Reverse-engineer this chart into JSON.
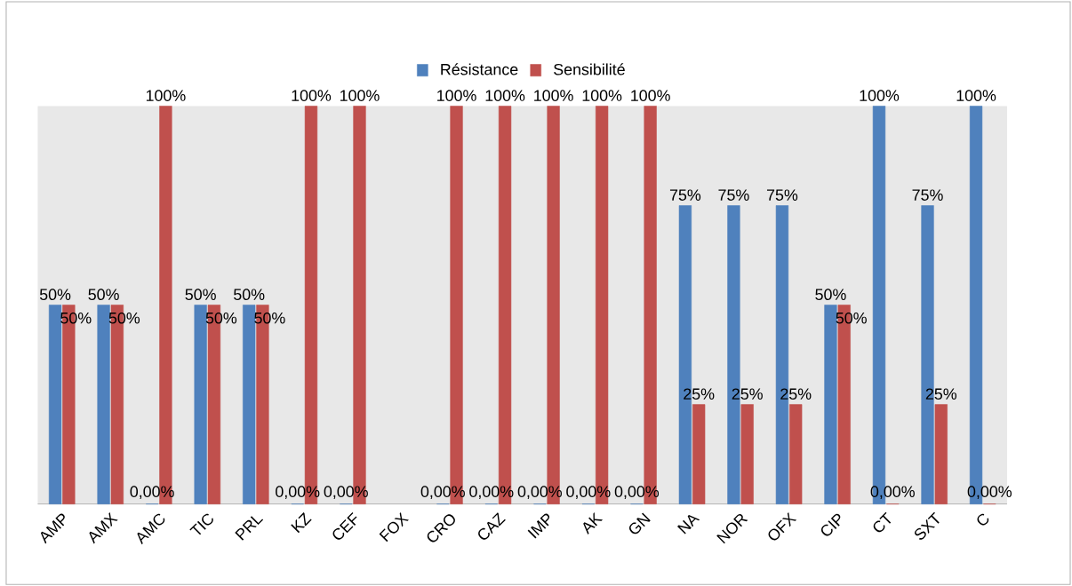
{
  "chart_data": {
    "type": "bar",
    "categories": [
      "AMP",
      "AMX",
      "AMC",
      "TIC",
      "PRL",
      "KZ",
      "CEF",
      "FOX",
      "CRO",
      "CAZ",
      "IMP",
      "AK",
      "GN",
      "NA",
      "NOR",
      "OFX",
      "CIP",
      "CT",
      "SXT",
      "C"
    ],
    "series": [
      {
        "name": "Résistance",
        "color": "#4f81bd",
        "values": [
          50,
          50,
          0,
          50,
          50,
          0,
          0,
          null,
          0,
          0,
          0,
          0,
          0,
          75,
          75,
          75,
          50,
          100,
          75,
          100
        ],
        "value_labels": [
          "50%",
          "50%",
          "0,00%",
          "50%",
          "50%",
          "0,00%",
          "0,00%",
          null,
          "0,00%",
          "0,00%",
          "0,00%",
          "0,00%",
          "0,00%",
          "75%",
          "75%",
          "75%",
          "50%",
          "100%",
          "75%",
          "100%"
        ]
      },
      {
        "name": "Sensibilité",
        "color": "#c0504d",
        "values": [
          50,
          50,
          100,
          50,
          50,
          100,
          100,
          null,
          100,
          100,
          100,
          100,
          100,
          25,
          25,
          25,
          50,
          0,
          25,
          0
        ],
        "value_labels": [
          "50%",
          "50%",
          "100%",
          "50%",
          "50%",
          "100%",
          "100%",
          null,
          "100%",
          "100%",
          "100%",
          "100%",
          "100%",
          "25%",
          "25%",
          "25%",
          "50%",
          "0,00%",
          "25%",
          "0,00%"
        ]
      }
    ],
    "ylim": [
      0,
      100
    ],
    "legend": "top"
  }
}
